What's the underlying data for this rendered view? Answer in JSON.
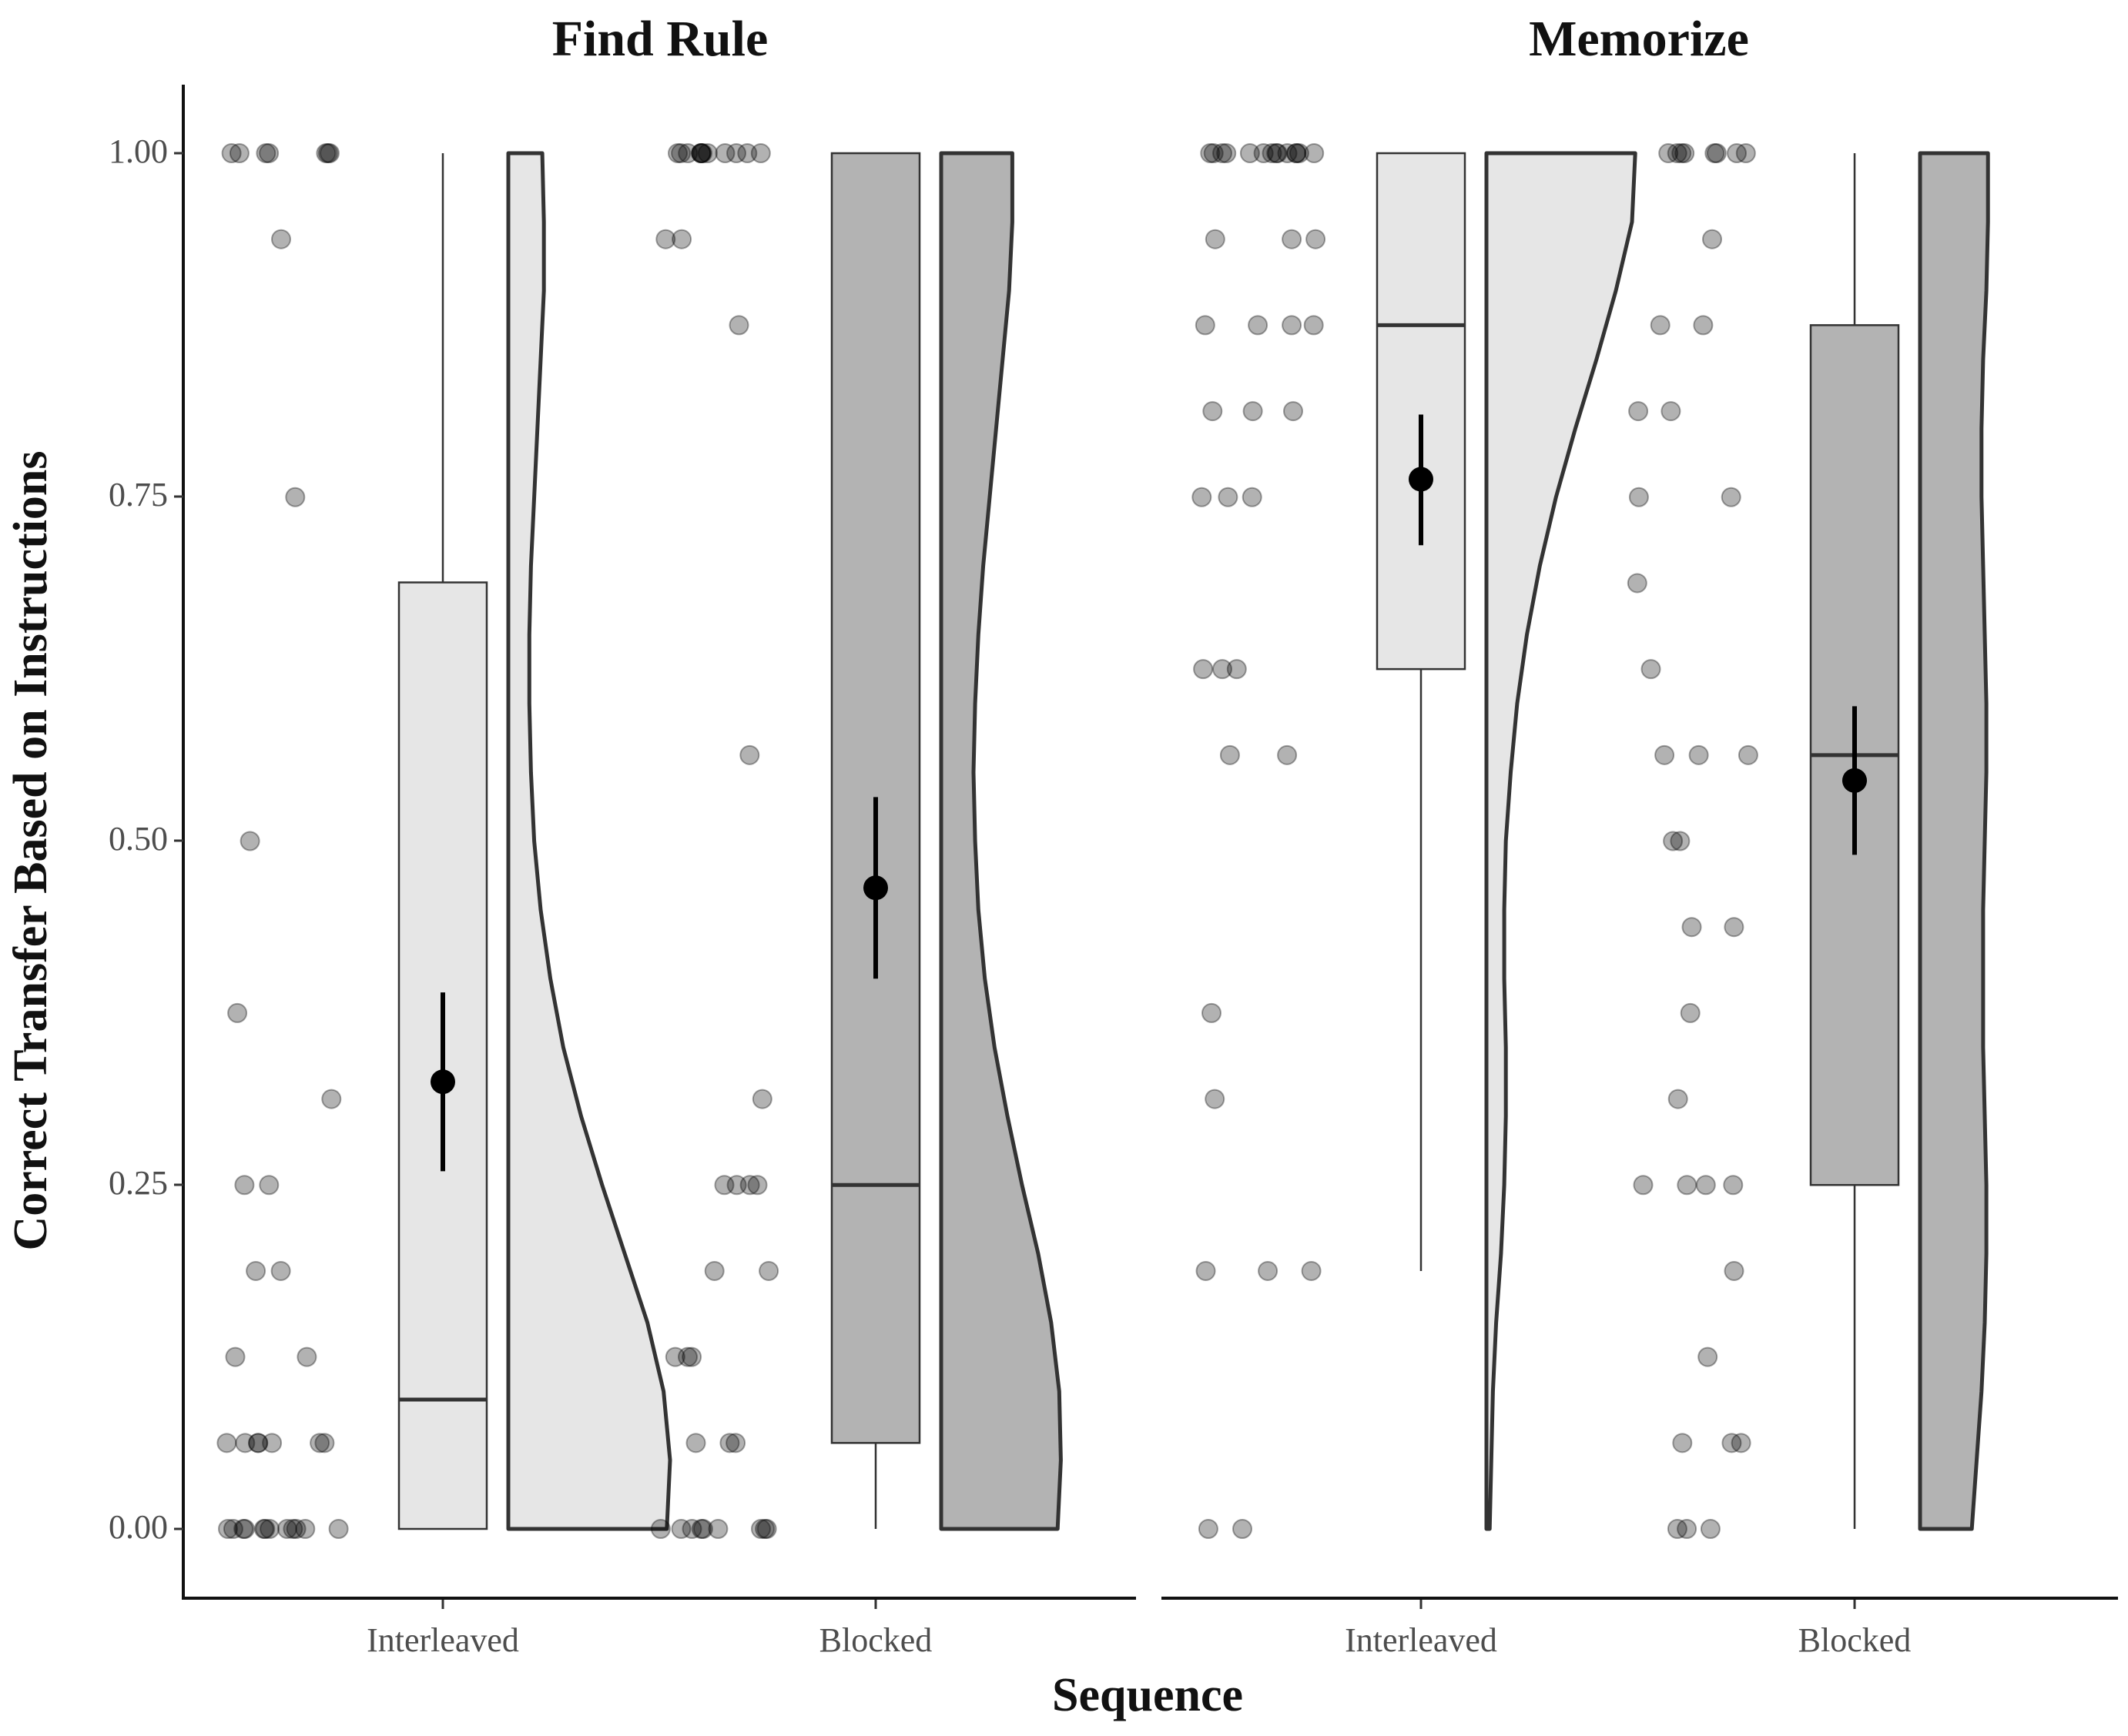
{
  "chart_data": {
    "type": "raincloud",
    "xlabel": "Sequence",
    "ylabel": "Correct Transfer Based on Instructions",
    "ylim": [
      0,
      1
    ],
    "yticks": [
      "0.00",
      "0.25",
      "0.50",
      "0.75",
      "1.00"
    ],
    "ytick_values": [
      0,
      0.25,
      0.5,
      0.75,
      1.0
    ],
    "categories": [
      "Interleaved",
      "Blocked"
    ],
    "colors": {
      "Interleaved": "#e6e6e6",
      "Blocked": "#b3b3b3",
      "outline": "#333333",
      "point": "#000000"
    },
    "grid": false,
    "panels": [
      {
        "title": "Find Rule",
        "groups": [
          {
            "category": "Interleaved",
            "box": {
              "min": 0,
              "q1": 0,
              "median": 0.094,
              "q3": 0.688,
              "max": 1.0
            },
            "mean": 0.325,
            "ci": [
              0.26,
              0.39
            ],
            "density": [
              [
                0,
                0.98
              ],
              [
                0.05,
                1.0
              ],
              [
                0.1,
                0.96
              ],
              [
                0.15,
                0.86
              ],
              [
                0.2,
                0.72
              ],
              [
                0.25,
                0.58
              ],
              [
                0.3,
                0.45
              ],
              [
                0.35,
                0.34
              ],
              [
                0.4,
                0.26
              ],
              [
                0.45,
                0.2
              ],
              [
                0.5,
                0.16
              ],
              [
                0.55,
                0.14
              ],
              [
                0.6,
                0.13
              ],
              [
                0.65,
                0.13
              ],
              [
                0.7,
                0.14
              ],
              [
                0.75,
                0.16
              ],
              [
                0.8,
                0.18
              ],
              [
                0.85,
                0.2
              ],
              [
                0.9,
                0.22
              ],
              [
                0.95,
                0.22
              ],
              [
                1.0,
                0.21
              ]
            ],
            "points": [
              1,
              1,
              1,
              1,
              1,
              1,
              1,
              0.9375,
              0.75,
              0.5,
              0.375,
              0.3125,
              0.25,
              0.25,
              0.1875,
              0.1875,
              0.125,
              0.125,
              0.0625,
              0.0625,
              0.0625,
              0.0625,
              0.0625,
              0.0625,
              0.0625,
              0,
              0,
              0,
              0,
              0,
              0,
              0,
              0,
              0,
              0,
              0,
              0
            ]
          },
          {
            "category": "Blocked",
            "box": {
              "min": 0,
              "q1": 0.0625,
              "median": 0.25,
              "q3": 1.0,
              "max": 1.0
            },
            "mean": 0.466,
            "ci": [
              0.4,
              0.532
            ],
            "density": [
              [
                0,
                0.72
              ],
              [
                0.05,
                0.74
              ],
              [
                0.1,
                0.73
              ],
              [
                0.15,
                0.68
              ],
              [
                0.2,
                0.6
              ],
              [
                0.25,
                0.5
              ],
              [
                0.3,
                0.41
              ],
              [
                0.35,
                0.33
              ],
              [
                0.4,
                0.27
              ],
              [
                0.45,
                0.23
              ],
              [
                0.5,
                0.21
              ],
              [
                0.55,
                0.2
              ],
              [
                0.6,
                0.21
              ],
              [
                0.65,
                0.23
              ],
              [
                0.7,
                0.26
              ],
              [
                0.75,
                0.3
              ],
              [
                0.8,
                0.34
              ],
              [
                0.85,
                0.38
              ],
              [
                0.9,
                0.42
              ],
              [
                0.95,
                0.44
              ],
              [
                1.0,
                0.44
              ]
            ],
            "points": [
              1,
              1,
              1,
              1,
              1,
              1,
              1,
              1,
              1,
              1,
              1,
              1,
              0.9375,
              0.9375,
              0.875,
              0.5625,
              0.3125,
              0.25,
              0.25,
              0.25,
              0.25,
              0.1875,
              0.1875,
              0.125,
              0.125,
              0.125,
              0.0625,
              0.0625,
              0.0625,
              0,
              0,
              0,
              0,
              0,
              0,
              0,
              0,
              0
            ]
          }
        ]
      },
      {
        "title": "Memorize",
        "groups": [
          {
            "category": "Interleaved",
            "box": {
              "min": 0.1875,
              "q1": 0.625,
              "median": 0.875,
              "q3": 1.0,
              "max": 1.0
            },
            "mean": 0.763,
            "ci": [
              0.715,
              0.81
            ],
            "density": [
              [
                0,
                0.02
              ],
              [
                0.05,
                0.03
              ],
              [
                0.1,
                0.04
              ],
              [
                0.15,
                0.06
              ],
              [
                0.2,
                0.09
              ],
              [
                0.25,
                0.11
              ],
              [
                0.3,
                0.12
              ],
              [
                0.35,
                0.12
              ],
              [
                0.4,
                0.11
              ],
              [
                0.45,
                0.11
              ],
              [
                0.5,
                0.12
              ],
              [
                0.55,
                0.15
              ],
              [
                0.6,
                0.19
              ],
              [
                0.65,
                0.25
              ],
              [
                0.7,
                0.33
              ],
              [
                0.75,
                0.43
              ],
              [
                0.8,
                0.55
              ],
              [
                0.85,
                0.68
              ],
              [
                0.9,
                0.8
              ],
              [
                0.95,
                0.9
              ],
              [
                1.0,
                0.92
              ]
            ],
            "points": [
              1,
              1,
              1,
              1,
              1,
              1,
              1,
              1,
              1,
              1,
              1,
              1,
              1,
              1,
              0.9375,
              0.9375,
              0.9375,
              0.875,
              0.875,
              0.875,
              0.875,
              0.8125,
              0.8125,
              0.8125,
              0.75,
              0.75,
              0.75,
              0.625,
              0.625,
              0.625,
              0.5625,
              0.5625,
              0.375,
              0.3125,
              0.1875,
              0.1875,
              0.1875,
              0,
              0
            ]
          },
          {
            "category": "Blocked",
            "box": {
              "min": 0,
              "q1": 0.25,
              "median": 0.5625,
              "q3": 0.875,
              "max": 1.0
            },
            "mean": 0.544,
            "ci": [
              0.49,
              0.598
            ],
            "density": [
              [
                0,
                0.32
              ],
              [
                0.05,
                0.35
              ],
              [
                0.1,
                0.38
              ],
              [
                0.15,
                0.4
              ],
              [
                0.2,
                0.41
              ],
              [
                0.25,
                0.41
              ],
              [
                0.3,
                0.4
              ],
              [
                0.35,
                0.39
              ],
              [
                0.4,
                0.39
              ],
              [
                0.45,
                0.39
              ],
              [
                0.5,
                0.4
              ],
              [
                0.55,
                0.41
              ],
              [
                0.6,
                0.41
              ],
              [
                0.65,
                0.4
              ],
              [
                0.7,
                0.39
              ],
              [
                0.75,
                0.38
              ],
              [
                0.8,
                0.38
              ],
              [
                0.85,
                0.39
              ],
              [
                0.9,
                0.41
              ],
              [
                0.95,
                0.42
              ],
              [
                1.0,
                0.42
              ]
            ],
            "points": [
              1,
              1,
              1,
              1,
              1,
              1,
              1,
              1,
              0.9375,
              0.875,
              0.875,
              0.8125,
              0.8125,
              0.75,
              0.75,
              0.6875,
              0.625,
              0.5625,
              0.5625,
              0.5625,
              0.5,
              0.5,
              0.4375,
              0.4375,
              0.375,
              0.3125,
              0.25,
              0.25,
              0.25,
              0.25,
              0.1875,
              0.125,
              0.0625,
              0.0625,
              0.0625,
              0,
              0,
              0
            ]
          }
        ]
      }
    ]
  }
}
